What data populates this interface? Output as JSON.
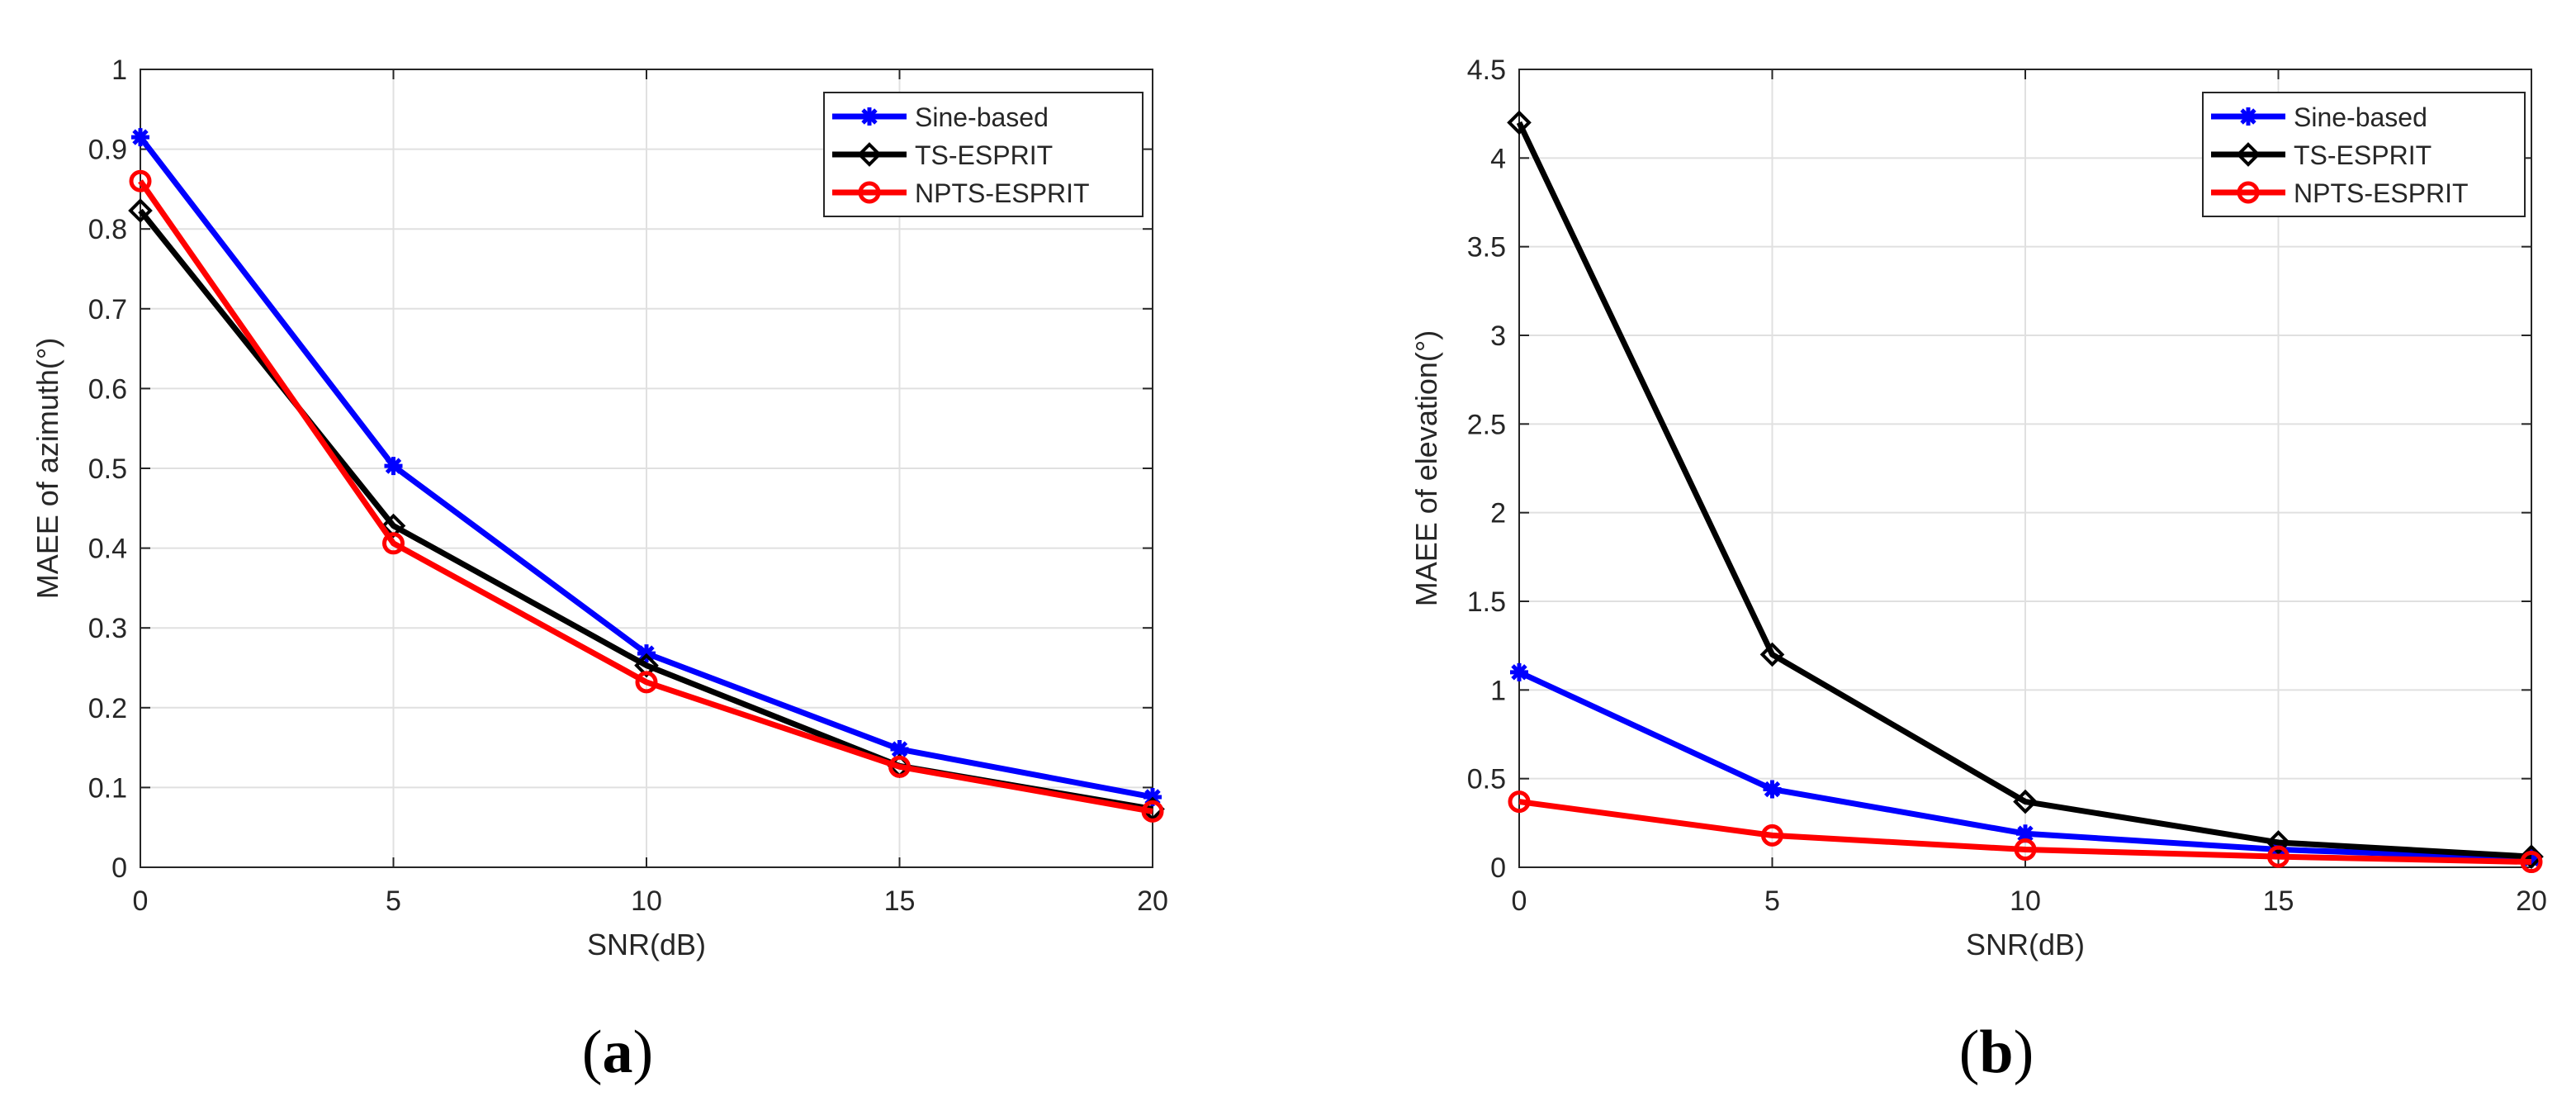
{
  "colors": {
    "sine": "#0000ff",
    "ts": "#000000",
    "npts": "#ff0000",
    "grid": "#e0e0e0",
    "axis": "#262626"
  },
  "chart_data": [
    {
      "type": "line",
      "panel_label_open": "(",
      "panel_label_letter": "a",
      "panel_label_close": ")",
      "title": "",
      "xlabel": "SNR(dB)",
      "ylabel": "MAEE of azimuth(°)",
      "xlim": [
        0,
        20
      ],
      "ylim": [
        0,
        1
      ],
      "xticks": [
        0,
        5,
        10,
        15,
        20
      ],
      "xtick_labels": [
        "0",
        "5",
        "10",
        "15",
        "20"
      ],
      "yticks": [
        0,
        0.1,
        0.2,
        0.3,
        0.4,
        0.5,
        0.6,
        0.7,
        0.8,
        0.9,
        1
      ],
      "ytick_labels": [
        "0",
        "0.1",
        "0.2",
        "0.3",
        "0.4",
        "0.5",
        "0.6",
        "0.7",
        "0.8",
        "0.9",
        "1"
      ],
      "grid": true,
      "legend_position": "top-right",
      "x": [
        0,
        5,
        10,
        15,
        20
      ],
      "series": [
        {
          "name": "Sine-based",
          "marker": "star",
          "color": "#0000ff",
          "values": [
            0.915,
            0.503,
            0.268,
            0.148,
            0.088
          ]
        },
        {
          "name": "TS-ESPRIT",
          "marker": "diamond",
          "color": "#000000",
          "values": [
            0.823,
            0.428,
            0.253,
            0.127,
            0.073
          ]
        },
        {
          "name": "NPTS-ESPRIT",
          "marker": "circle",
          "color": "#ff0000",
          "values": [
            0.86,
            0.406,
            0.232,
            0.126,
            0.07
          ]
        }
      ]
    },
    {
      "type": "line",
      "panel_label_open": "(",
      "panel_label_letter": "b",
      "panel_label_close": ")",
      "title": "",
      "xlabel": "SNR(dB)",
      "ylabel": "MAEE of elevation(°)",
      "xlim": [
        0,
        20
      ],
      "ylim": [
        0,
        4.5
      ],
      "xticks": [
        0,
        5,
        10,
        15,
        20
      ],
      "xtick_labels": [
        "0",
        "5",
        "10",
        "15",
        "20"
      ],
      "yticks": [
        0,
        0.5,
        1,
        1.5,
        2,
        2.5,
        3,
        3.5,
        4,
        4.5
      ],
      "ytick_labels": [
        "0",
        "0.5",
        "1",
        "1.5",
        "2",
        "2.5",
        "3",
        "3.5",
        "4",
        "4.5"
      ],
      "grid": true,
      "legend_position": "top-right",
      "x": [
        0,
        5,
        10,
        15,
        20
      ],
      "series": [
        {
          "name": "Sine-based",
          "marker": "star",
          "color": "#0000ff",
          "values": [
            1.1,
            0.44,
            0.19,
            0.1,
            0.05
          ]
        },
        {
          "name": "TS-ESPRIT",
          "marker": "diamond",
          "color": "#000000",
          "values": [
            4.2,
            1.2,
            0.37,
            0.14,
            0.06
          ]
        },
        {
          "name": "NPTS-ESPRIT",
          "marker": "circle",
          "color": "#ff0000",
          "values": [
            0.37,
            0.18,
            0.1,
            0.06,
            0.03
          ]
        }
      ]
    }
  ]
}
